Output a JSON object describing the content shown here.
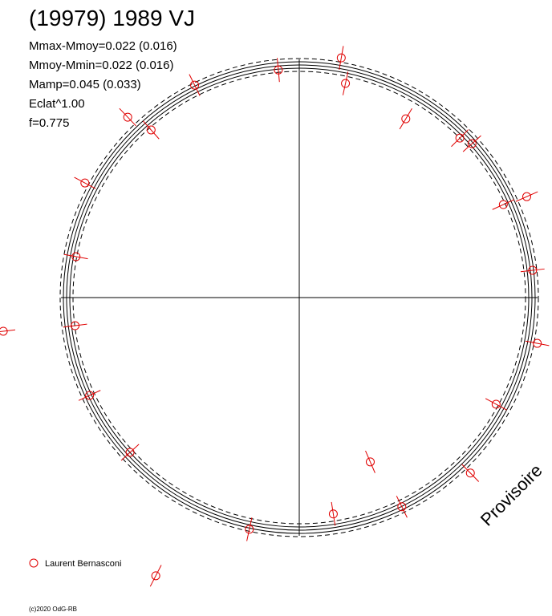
{
  "chart_data": {
    "type": "scatter",
    "title": "(19979) 1989 VJ",
    "annotations": [
      "Mmax-Mmoy=0.022 (0.016)",
      "Mmoy-Mmin=0.022 (0.016)",
      "Mamp=0.045 (0.033)",
      "Eclat^1.00",
      "f=0.775"
    ],
    "watermark": "Provisoire",
    "credit": "(c)2020 OdG-RB",
    "xlim": [
      -1.28,
      1.08
    ],
    "ylim": [
      -1.37,
      1.28
    ],
    "series": [
      {
        "name": "Laurent Bernasconi",
        "color": "#e00000",
        "x": [
          -0.09,
          0.179,
          0.197,
          -0.448,
          -0.734,
          -0.634,
          0.455,
          0.686,
          0.738,
          0.972,
          0.872,
          -0.917,
          -0.955,
          0.997,
          -0.959,
          1.017,
          -0.897,
          0.841,
          -0.724,
          0.303,
          0.731,
          0.438,
          0.145,
          -0.214,
          -1.266,
          -0.614
        ],
        "values": [
          0.979,
          1.031,
          0.921,
          0.914,
          0.776,
          0.721,
          0.769,
          0.686,
          0.662,
          0.434,
          0.4,
          0.493,
          0.176,
          0.117,
          -0.121,
          -0.197,
          -0.421,
          -0.459,
          -0.666,
          -0.707,
          -0.755,
          -0.9,
          -0.931,
          -0.997,
          -0.145,
          -1.197
        ]
      }
    ]
  }
}
